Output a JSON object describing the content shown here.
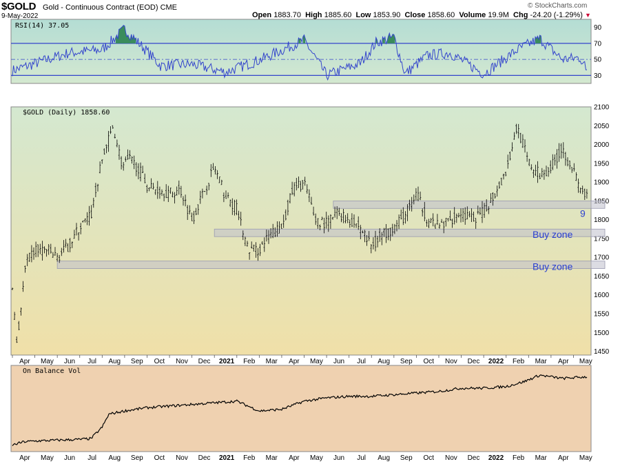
{
  "header": {
    "symbol": "$GOLD",
    "description": "Gold - Continuous Contract (EOD)",
    "exchange": "CME",
    "date": "9-May-2022",
    "brand": "© StockCharts.com",
    "ohlc": {
      "open_label": "Open",
      "open": "1883.70",
      "high_label": "High",
      "high": "1885.60",
      "low_label": "Low",
      "low": "1853.90",
      "close_label": "Close",
      "close": "1858.60",
      "volume_label": "Volume",
      "volume": "19.9M",
      "chg_label": "Chg",
      "chg": "-24.20 (-1.29%)"
    }
  },
  "colors": {
    "rsi_line": "#3344cc",
    "rsi_overbought_fill": "#3a8c5c",
    "price_bars": "#000000",
    "obv_line": "#000000",
    "zone_fill": "#c0c0cc",
    "annotation": "#2a3fd0",
    "rsi_bg_top": "#b4ddd4",
    "price_bg_top": "#d4e8d0",
    "price_bg_bottom": "#f0e0a8",
    "obv_bg": "#efd1b0"
  },
  "chart_data": [
    {
      "type": "line",
      "panel": "rsi",
      "title": "RSI(14) 37.05",
      "ylim": [
        20,
        100
      ],
      "yticks": [
        30,
        50,
        70,
        90
      ],
      "reference_lines": [
        30,
        50,
        70
      ],
      "x_anchor_months": [
        "Apr",
        "Jul",
        "Aug",
        "Oct",
        "Jan",
        "Mar",
        "May",
        "Jun",
        "Jul",
        "Aug",
        "Sep",
        "Nov",
        "Jan",
        "Mar",
        "Apr",
        "May"
      ],
      "series": [
        {
          "name": "RSI(14)",
          "x": [
            0,
            2.5,
            4,
            5,
            6,
            6.6,
            8,
            9.5,
            11,
            13,
            14,
            15.5,
            16.2,
            17,
            17.5,
            18.5,
            19.5,
            21,
            22.5,
            23.5,
            24.5,
            25.3,
            25.6
          ],
          "values": [
            36,
            58,
            62,
            88,
            60,
            42,
            44,
            34,
            49,
            74,
            30,
            45,
            71,
            78,
            32,
            55,
            58,
            32,
            62,
            76,
            50,
            52,
            37.05
          ]
        }
      ]
    },
    {
      "type": "ohlc",
      "panel": "price",
      "title": "$GOLD (Daily) 1858.60",
      "ylim": [
        1440,
        2100
      ],
      "yticks": [
        1450,
        1500,
        1550,
        1600,
        1650,
        1700,
        1750,
        1800,
        1850,
        1900,
        1950,
        2000,
        2050,
        2100
      ],
      "x_tick_labels": [
        "Apr",
        "May",
        "Jun",
        "Jul",
        "Aug",
        "Sep",
        "Oct",
        "Nov",
        "Dec",
        "2021",
        "Feb",
        "Mar",
        "Apr",
        "May",
        "Jun",
        "Jul",
        "Aug",
        "Sep",
        "Oct",
        "Nov",
        "Dec",
        "2022",
        "Feb",
        "Mar",
        "Apr",
        "May"
      ],
      "series": [
        {
          "name": "$GOLD",
          "x": [
            0,
            0.2,
            0.6,
            1.0,
            1.5,
            2.0,
            2.5,
            3.0,
            3.5,
            4.0,
            4.5,
            4.9,
            5.2,
            5.6,
            6.0,
            6.5,
            7.0,
            7.5,
            8.0,
            8.5,
            9.0,
            9.5,
            10.0,
            10.5,
            11.0,
            11.5,
            12.0,
            12.5,
            13.0,
            13.5,
            14.0,
            14.5,
            15.0,
            15.5,
            16.0,
            16.5,
            17.0,
            17.5,
            18.0,
            18.5,
            19.0,
            19.5,
            20.0,
            20.5,
            21.0,
            21.5,
            22.0,
            22.5,
            23.0,
            23.5,
            24.0,
            24.5,
            25.0,
            25.3,
            25.6
          ],
          "values": [
            1620,
            1470,
            1680,
            1720,
            1720,
            1700,
            1730,
            1780,
            1810,
            1960,
            2050,
            1940,
            1960,
            1940,
            1890,
            1880,
            1870,
            1880,
            1800,
            1870,
            1940,
            1860,
            1830,
            1720,
            1720,
            1760,
            1780,
            1880,
            1900,
            1800,
            1790,
            1820,
            1800,
            1780,
            1730,
            1760,
            1780,
            1810,
            1870,
            1800,
            1780,
            1800,
            1820,
            1800,
            1820,
            1870,
            1930,
            2050,
            1950,
            1920,
            1940,
            1990,
            1930,
            1880,
            1858.6
          ]
        }
      ],
      "support_zones": [
        {
          "low": 1830,
          "high": 1850,
          "label": "9"
        },
        {
          "low": 1755,
          "high": 1775,
          "label": "Buy zone"
        },
        {
          "low": 1670,
          "high": 1690,
          "label": "Buy zone"
        }
      ]
    },
    {
      "type": "line",
      "panel": "on_balance_volume",
      "title": "On Balance Vol",
      "series": [
        {
          "name": "On Balance Vol",
          "x": [
            0,
            0.5,
            1,
            2,
            3,
            3.5,
            4,
            4.3,
            5,
            6,
            7,
            8,
            9,
            10,
            11,
            12,
            13,
            14,
            15,
            16,
            17,
            18,
            19,
            20,
            21,
            22,
            22.8,
            23.5,
            24.5,
            25.6
          ],
          "values": [
            -9,
            -7,
            -6.5,
            -6,
            -5.5,
            -5,
            2,
            10,
            12,
            14,
            15,
            16,
            17,
            18,
            12,
            13,
            18,
            20,
            21,
            21,
            22,
            23,
            24,
            26,
            26,
            27,
            30,
            34,
            32,
            33
          ]
        }
      ]
    }
  ]
}
